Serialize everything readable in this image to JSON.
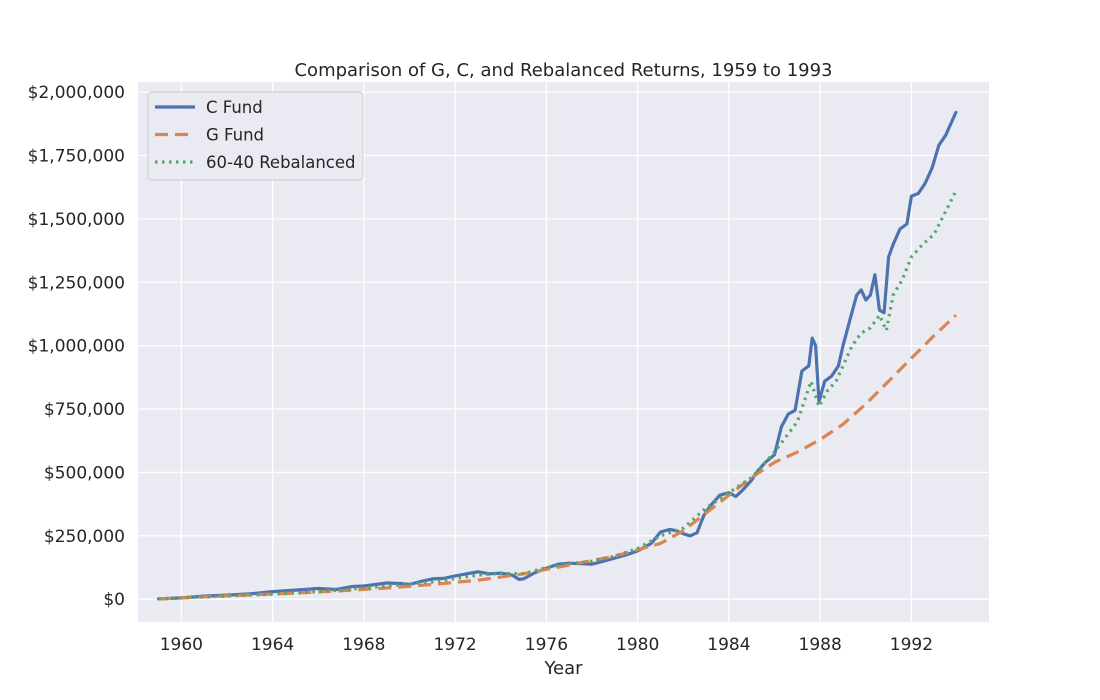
{
  "chart_data": {
    "type": "line",
    "title": "Comparison of G, C, and Rebalanced Returns, 1959 to 1993",
    "xlabel": "Year",
    "ylabel": "",
    "xlim": [
      1958.1,
      1995.4
    ],
    "ylim": [
      -90000,
      2040000
    ],
    "grid": true,
    "legend_position": "top-left",
    "x_ticks": [
      1960,
      1964,
      1968,
      1972,
      1976,
      1980,
      1984,
      1988,
      1992
    ],
    "x_tick_labels": [
      "1960",
      "1964",
      "1968",
      "1972",
      "1976",
      "1980",
      "1984",
      "1988",
      "1992"
    ],
    "y_ticks": [
      0,
      250000,
      500000,
      750000,
      1000000,
      1250000,
      1500000,
      1750000,
      2000000
    ],
    "y_tick_labels": [
      "$0",
      "$250,000",
      "$500,000",
      "$750,000",
      "$1,000,000",
      "$1,250,000",
      "$1,500,000",
      "$1,750,000",
      "$2,000,000"
    ],
    "series": [
      {
        "name": "C Fund",
        "color": "#4c72b0",
        "style": "solid",
        "x": [
          1959.0,
          1960.0,
          1961.0,
          1962.0,
          1963.0,
          1964.0,
          1965.0,
          1966.0,
          1966.8,
          1967.5,
          1968.0,
          1968.5,
          1969.0,
          1969.6,
          1970.0,
          1970.5,
          1971.0,
          1971.5,
          1972.0,
          1972.5,
          1973.0,
          1973.5,
          1974.0,
          1974.5,
          1974.8,
          1975.0,
          1975.5,
          1976.0,
          1976.5,
          1977.0,
          1977.5,
          1978.0,
          1978.5,
          1979.0,
          1979.5,
          1980.0,
          1980.3,
          1980.6,
          1981.0,
          1981.4,
          1981.7,
          1982.0,
          1982.3,
          1982.6,
          1982.9,
          1983.2,
          1983.6,
          1984.0,
          1984.3,
          1984.6,
          1985.0,
          1985.3,
          1985.6,
          1986.0,
          1986.3,
          1986.6,
          1986.9,
          1987.2,
          1987.5,
          1987.65,
          1987.8,
          1987.95,
          1988.2,
          1988.5,
          1988.8,
          1989.0,
          1989.3,
          1989.6,
          1989.8,
          1990.0,
          1990.2,
          1990.4,
          1990.6,
          1990.8,
          1991.0,
          1991.2,
          1991.5,
          1991.8,
          1992.0,
          1992.3,
          1992.6,
          1992.9,
          1993.2,
          1993.5,
          1993.8,
          1993.95
        ],
        "y": [
          1000,
          5000,
          12000,
          16000,
          21000,
          30000,
          36000,
          42000,
          38000,
          50000,
          52000,
          58000,
          64000,
          62000,
          58000,
          70000,
          80000,
          82000,
          92000,
          100000,
          108000,
          100000,
          103000,
          95000,
          78000,
          80000,
          105000,
          122000,
          138000,
          142000,
          140000,
          138000,
          150000,
          162000,
          175000,
          190000,
          205000,
          220000,
          265000,
          275000,
          270000,
          258000,
          250000,
          262000,
          330000,
          370000,
          410000,
          420000,
          405000,
          430000,
          470000,
          510000,
          540000,
          570000,
          680000,
          730000,
          745000,
          900000,
          920000,
          1030000,
          1000000,
          780000,
          860000,
          880000,
          920000,
          1000000,
          1100000,
          1200000,
          1220000,
          1180000,
          1200000,
          1280000,
          1140000,
          1130000,
          1350000,
          1400000,
          1460000,
          1480000,
          1590000,
          1600000,
          1640000,
          1700000,
          1790000,
          1830000,
          1890000,
          1920000
        ]
      },
      {
        "name": "G Fund",
        "color": "#dd8452",
        "style": "dashed",
        "x": [
          1959.0,
          1961.0,
          1963.0,
          1965.0,
          1967.0,
          1969.0,
          1971.0,
          1973.0,
          1975.0,
          1977.0,
          1979.0,
          1981.0,
          1982.0,
          1983.0,
          1984.0,
          1985.0,
          1986.0,
          1987.0,
          1988.0,
          1989.0,
          1990.0,
          1991.0,
          1992.0,
          1993.0,
          1993.95
        ],
        "y": [
          1000,
          9000,
          17000,
          24000,
          33000,
          44000,
          58000,
          75000,
          100000,
          135000,
          170000,
          220000,
          270000,
          340000,
          410000,
          480000,
          540000,
          580000,
          630000,
          690000,
          770000,
          860000,
          950000,
          1040000,
          1120000
        ]
      },
      {
        "name": "60-40 Rebalanced",
        "color": "#55a868",
        "style": "dotted",
        "x": [
          1959.0,
          1961.0,
          1963.0,
          1965.0,
          1967.0,
          1969.0,
          1971.0,
          1973.0,
          1974.0,
          1975.0,
          1976.0,
          1977.0,
          1978.0,
          1979.0,
          1980.0,
          1981.0,
          1982.0,
          1983.0,
          1984.0,
          1985.0,
          1986.0,
          1986.5,
          1987.0,
          1987.6,
          1987.95,
          1988.3,
          1988.7,
          1989.0,
          1989.4,
          1989.8,
          1990.2,
          1990.6,
          1990.9,
          1991.2,
          1991.6,
          1992.0,
          1992.5,
          1993.0,
          1993.5,
          1993.95
        ],
        "y": [
          1000,
          9000,
          16000,
          24000,
          36000,
          52000,
          68000,
          95000,
          102000,
          100000,
          125000,
          140000,
          150000,
          170000,
          200000,
          250000,
          280000,
          360000,
          420000,
          480000,
          580000,
          640000,
          700000,
          860000,
          760000,
          820000,
          860000,
          920000,
          1000000,
          1050000,
          1070000,
          1120000,
          1060000,
          1200000,
          1260000,
          1350000,
          1400000,
          1440000,
          1530000,
          1610000
        ]
      }
    ]
  }
}
